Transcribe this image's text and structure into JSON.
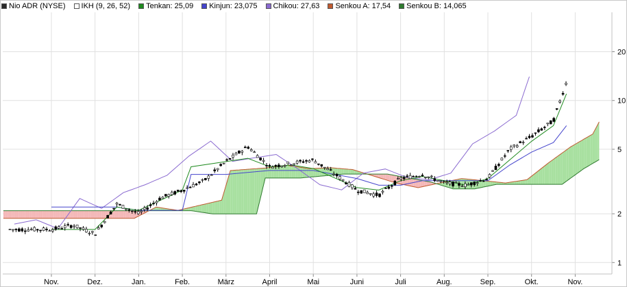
{
  "legend": {
    "items": [
      {
        "label": "Nio ADR (NYSE)",
        "color": "#2a2a2a"
      },
      {
        "label": "IKH (9, 26, 52)",
        "color": "#ffffff"
      },
      {
        "label": "Tenkan: 25,09",
        "color": "#1f8a1f"
      },
      {
        "label": "Kinjun: 23,075",
        "color": "#4444cc"
      },
      {
        "label": "Chikou: 27,63",
        "color": "#8a6ad0"
      },
      {
        "label": "Senkou A: 17,54",
        "color": "#c05a30"
      },
      {
        "label": "Senkou B: 14,065",
        "color": "#2e7a2e"
      }
    ]
  },
  "chart_data": {
    "type": "line",
    "title": "",
    "scale": "log",
    "ylim": [
      0.85,
      35
    ],
    "y_ticks": [
      1,
      2,
      5,
      10,
      20
    ],
    "x_ticks": [
      "Nov.",
      "Dez.",
      "Jan.",
      "Feb.",
      "März",
      "April",
      "Mai",
      "Juni",
      "Juli",
      "Aug.",
      "Sep.",
      "Okt.",
      "Nov."
    ],
    "grid": true,
    "colors": {
      "price": "#000000",
      "tenkan": "#1f8a1f",
      "kijun": "#4444cc",
      "chikou": "#8a6ad0",
      "senkou_a": "#c05a30",
      "senkou_b": "#2e7a2e",
      "cloud_bull": "#a8e0a0",
      "cloud_bear": "#f4b8b8"
    },
    "series": [
      {
        "name": "Nio ADR (NYSE)",
        "t": [
          0,
          0.5,
          1,
          1.5,
          2,
          2.5,
          3,
          3.5,
          4,
          4.5,
          5,
          5.5,
          6,
          6.5,
          7,
          7.5,
          8,
          8.5,
          9,
          9.5,
          10,
          10.5,
          11,
          11.5,
          11.8
        ],
        "values": [
          1.6,
          1.7,
          1.5,
          2.3,
          2.0,
          2.5,
          2.8,
          3.2,
          4.2,
          5.2,
          3.9,
          4.1,
          4.3,
          3.5,
          2.8,
          2.6,
          3.3,
          3.5,
          3.1,
          3.0,
          3.3,
          5.0,
          6.0,
          7.5,
          13.0
        ]
      },
      {
        "name": "Tenkan",
        "t": [
          0,
          1,
          1.5,
          2,
          3,
          3.2,
          4,
          4.5,
          5,
          5.5,
          6,
          7,
          7.5,
          8,
          8.5,
          9,
          9.5,
          10,
          10.5,
          11,
          11.5,
          11.8
        ],
        "values": [
          1.6,
          1.6,
          2.2,
          2.1,
          2.8,
          3.9,
          4.2,
          4.4,
          3.9,
          4.0,
          3.8,
          2.9,
          2.8,
          3.2,
          3.4,
          3.2,
          3.0,
          3.3,
          4.3,
          5.6,
          7.0,
          11.0
        ]
      },
      {
        "name": "Kinjun",
        "t": [
          0,
          1,
          1.5,
          2,
          3,
          3.2,
          4,
          5,
          6,
          7,
          7.5,
          8,
          8.5,
          9,
          9.5,
          10,
          10.5,
          11,
          11.5,
          11.8
        ],
        "values": [
          2.2,
          2.2,
          2.2,
          2.1,
          2.1,
          3.5,
          3.5,
          3.7,
          3.7,
          3.3,
          3.0,
          3.0,
          3.2,
          3.2,
          3.2,
          3.2,
          4.0,
          4.8,
          5.5,
          7.0
        ]
      }
    ]
  },
  "y_axis": {
    "labels": [
      "20",
      "10",
      "5",
      "2",
      "1"
    ]
  }
}
